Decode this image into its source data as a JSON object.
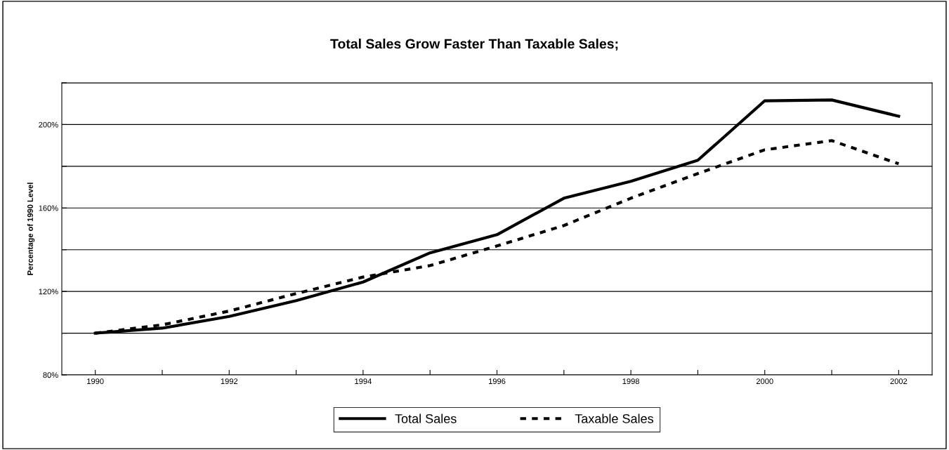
{
  "chart_data": {
    "type": "line",
    "title": "Total Sales Grow Faster Than Taxable Sales;",
    "ylabel": "Percentage of 1990 Level",
    "x": [
      1990,
      1991,
      1992,
      1993,
      1994,
      1995,
      1996,
      1997,
      1998,
      1999,
      2000,
      2001,
      2002
    ],
    "series": [
      {
        "name": "Total Sales",
        "color": "#000000",
        "line_style": "solid",
        "values": [
          100,
          102.4,
          108,
          115.6,
          124.5,
          138.5,
          147.2,
          164.7,
          172.8,
          182.9,
          211.4,
          211.8,
          204
        ]
      },
      {
        "name": "Taxable Sales",
        "color": "#000000",
        "line_style": "dashed",
        "values": [
          100,
          104,
          110.6,
          119,
          126.9,
          132.4,
          141.8,
          151.6,
          164.7,
          176.5,
          187.9,
          192.3,
          181.2
        ]
      }
    ],
    "xlim": [
      1989.5,
      2002.5
    ],
    "xticks": [
      1990,
      {
        "value": 1991,
        "label": null
      },
      1992,
      {
        "value": 1993,
        "label": null
      },
      1994,
      {
        "value": 1995,
        "label": null
      },
      1996,
      {
        "value": 1997,
        "label": null
      },
      1998,
      {
        "value": 1999,
        "label": null
      },
      2000,
      {
        "value": 2001,
        "label": null
      },
      2002
    ],
    "ylim": [
      80,
      220
    ],
    "yticks": [
      {
        "value": 80,
        "label": "80%"
      },
      {
        "value": 100,
        "label": null
      },
      {
        "value": 120,
        "label": "120%"
      },
      {
        "value": 140,
        "label": null
      },
      {
        "value": 160,
        "label": "160%"
      },
      {
        "value": 180,
        "label": null
      },
      {
        "value": 200,
        "label": "200%"
      },
      {
        "value": 220,
        "label": null
      }
    ],
    "grid": "y",
    "legend": "bottom"
  }
}
